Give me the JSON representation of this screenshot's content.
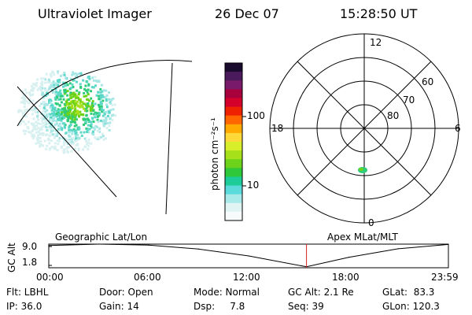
{
  "header": {
    "title": "Ultraviolet Imager",
    "date": "26 Dec 07",
    "time": "15:28:50 UT"
  },
  "polar_plot": {
    "mlat_labels": [
      "60",
      "70",
      "80"
    ],
    "mlt_labels": [
      "12",
      "18",
      "6",
      "0"
    ]
  },
  "colorbar": {
    "label": "photon cm⁻²s⁻¹",
    "ticks": [
      "100",
      "10"
    ],
    "colors": [
      "#1a0a2e",
      "#4b1a5c",
      "#7a1a6a",
      "#a8003c",
      "#d4002a",
      "#ee2200",
      "#ff6600",
      "#ffaa00",
      "#ffd83a",
      "#d8ee2a",
      "#a6e01a",
      "#6cd21a",
      "#2ec83a",
      "#1ecc9a",
      "#5adada",
      "#a8eaea",
      "#e0f4f4",
      "#f8fbfb"
    ]
  },
  "timeline": {
    "left_title": "Geographic Lat/Lon",
    "right_title": "Apex MLat/MLT",
    "ylabel": "GC Alt",
    "ytick_top": "9.0",
    "ytick_bottom": "1.8",
    "xticks": [
      "00:00",
      "06:00",
      "12:00",
      "18:00",
      "23:59"
    ],
    "marker_color": "#dd2222"
  },
  "chart_data": {
    "type": "line",
    "title": "",
    "xlabel": "",
    "ylabel": "GC Alt",
    "ylim": [
      1.8,
      9.0
    ],
    "xlim": [
      "00:00",
      "23:59"
    ],
    "x": [
      "00:00",
      "03:00",
      "06:00",
      "09:00",
      "12:00",
      "15:28",
      "18:00",
      "21:00",
      "23:59"
    ],
    "values": [
      8.6,
      9.0,
      8.7,
      7.5,
      5.4,
      2.1,
      5.0,
      7.6,
      8.9
    ],
    "current_time": "15:28:50"
  },
  "footer": {
    "col1": [
      "Flt: LBHL",
      "IP: 36.0"
    ],
    "col2": [
      "Door: Open",
      "Gain: 14"
    ],
    "col3": [
      "Mode: Normal",
      "Dsp:     7.8"
    ],
    "col4": [
      "GC Alt: 2.1 Re",
      "Seq: 39"
    ],
    "col5": [
      "GLat:  83.3",
      "GLon: 120.3"
    ]
  }
}
